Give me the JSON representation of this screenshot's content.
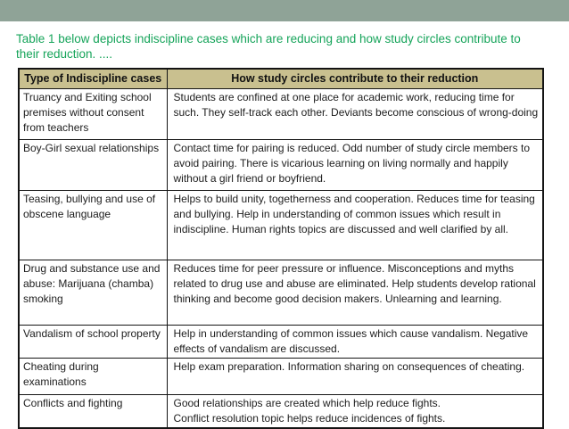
{
  "slide": {
    "title": "Table 1 below depicts indiscipline cases which are reducing and how study circles contribute to their reduction. ...."
  },
  "table": {
    "col1_header": "Type of Indiscipline cases",
    "col2_header": "How study circles contribute to their reduction",
    "rows": [
      {
        "case": "Truancy and Exiting school premises without consent from teachers",
        "contribution": "Students are confined at one place for academic work, reducing time for such. They self-track each other. Deviants become conscious of wrong-doing"
      },
      {
        "case": "Boy-Girl sexual relationships",
        "contribution": "Contact time for pairing is reduced. Odd number of study circle members to avoid pairing. There is vicarious learning on living normally and happily without a girl friend or boyfriend."
      },
      {
        "case": "Teasing, bullying  and use of obscene language",
        "contribution": "Helps to build unity, togetherness and cooperation. Reduces time for teasing and bullying. Help in understanding of common issues which result in indiscipline. Human rights topics are discussed and well clarified by all."
      },
      {
        "case": "Drug and substance use and abuse: Marijuana (chamba) smoking",
        "contribution": "Reduces time for peer pressure or influence. Misconceptions and myths related to drug use and abuse are eliminated. Help students develop rational thinking and become good decision makers. Unlearning and learning."
      },
      {
        "case": "Vandalism of school property",
        "contribution": "Help in understanding of common issues which cause vandalism. Negative effects of vandalism are discussed."
      },
      {
        "case": "Cheating during examinations",
        "contribution": "Help exam preparation. Information sharing on consequences of cheating."
      },
      {
        "case": "Conflicts and fighting",
        "contribution": "Good relationships are created which help reduce fights.\nConflict resolution topic helps reduce incidences of fights."
      }
    ]
  },
  "colors": {
    "top_bar": "#8FA397",
    "title_text": "#16A45A",
    "header_bg": "#C9C08F",
    "border": "#141414"
  }
}
